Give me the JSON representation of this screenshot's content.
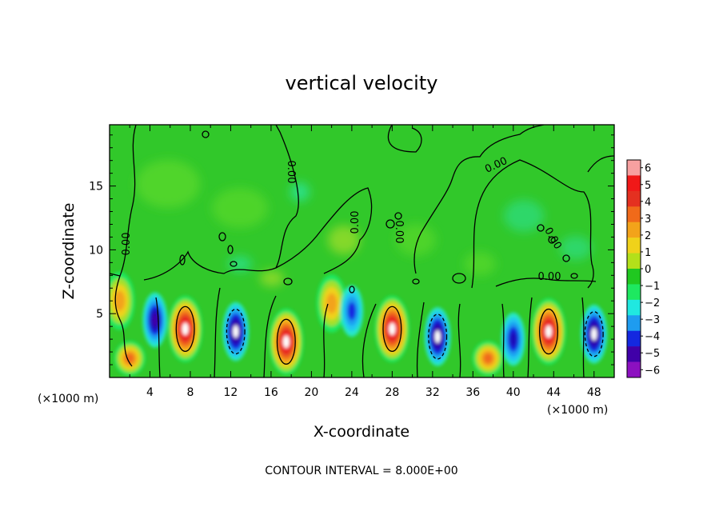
{
  "chart_data": {
    "type": "heatmap",
    "title": "vertical velocity",
    "xlabel": "X-coordinate",
    "ylabel": "Z-coordinate",
    "x_units": "(×1000 m)",
    "xlim": [
      0,
      50
    ],
    "ylim": [
      0,
      19.8
    ],
    "x_ticks": [
      4,
      8,
      12,
      16,
      20,
      24,
      28,
      32,
      36,
      40,
      44,
      48
    ],
    "y_ticks": [
      5,
      10,
      15
    ],
    "footer": "CONTOUR INTERVAL = 8.000E+00",
    "contour_label": "0.00",
    "contour_interval": 8.0,
    "colorbar": {
      "ticks": [
        6,
        5,
        4,
        3,
        2,
        1,
        0,
        -1,
        -2,
        -3,
        -4,
        -5,
        -6
      ],
      "tick_labels": [
        "6",
        "5",
        "4",
        "3",
        "2",
        "1",
        "0",
        "−1",
        "−2",
        "−3",
        "−4",
        "−5",
        "−6"
      ],
      "colors": [
        "#f7a0a0",
        "#f01818",
        "#e43020",
        "#f06a1a",
        "#f3a31a",
        "#f0d21a",
        "#b3e01a",
        "#20c820",
        "#1ee860",
        "#20e8e0",
        "#1e9cf0",
        "#1428e0",
        "#4000a8",
        "#8c10c0"
      ]
    },
    "updraft_cores": [
      {
        "x": 1.0,
        "z": 6.0,
        "w": 4
      },
      {
        "x": 2.0,
        "z": 1.5,
        "w": 5
      },
      {
        "x": 7.5,
        "z": 3.8,
        "w": 8
      },
      {
        "x": 17.5,
        "z": 2.8,
        "w": 8
      },
      {
        "x": 22.0,
        "z": 5.8,
        "w": 4
      },
      {
        "x": 28.0,
        "z": 3.8,
        "w": 8
      },
      {
        "x": 37.5,
        "z": 1.5,
        "w": 5
      },
      {
        "x": 43.5,
        "z": 3.6,
        "w": 8
      }
    ],
    "downdraft_cores": [
      {
        "x": 4.5,
        "z": 4.5,
        "w": -6
      },
      {
        "x": 12.5,
        "z": 3.6,
        "w": -8
      },
      {
        "x": 24.0,
        "z": 5.2,
        "w": -4
      },
      {
        "x": 32.5,
        "z": 3.2,
        "w": -8
      },
      {
        "x": 40.0,
        "z": 3.0,
        "w": -5
      },
      {
        "x": 48.0,
        "z": 3.4,
        "w": -8
      }
    ]
  }
}
